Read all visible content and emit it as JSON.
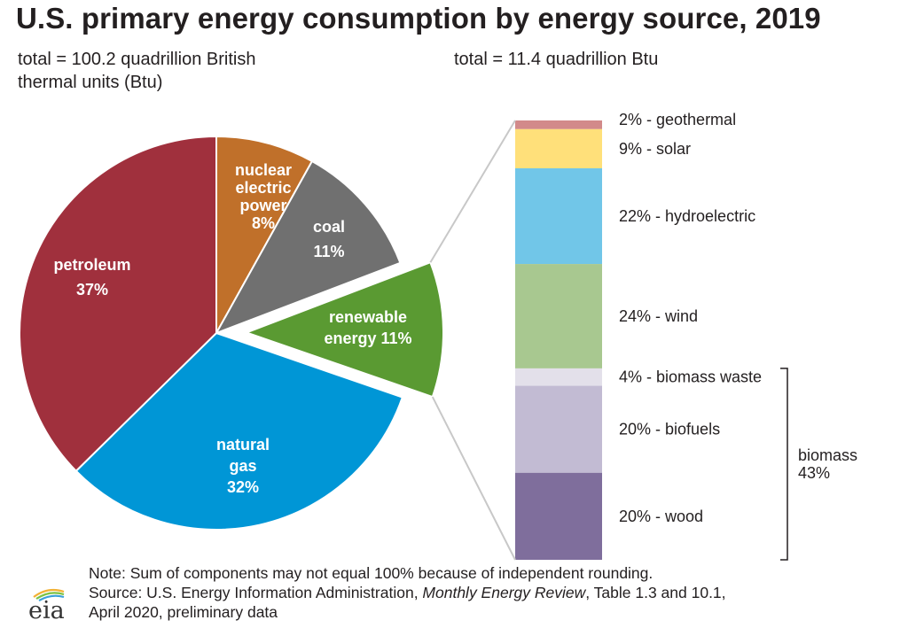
{
  "title": "U.S. primary energy consumption by energy source, 2019",
  "subtitle_left": "total = 100.2 quadrillion British thermal units (Btu)",
  "subtitle_right": "total = 11.4 quadrillion Btu",
  "colors": {
    "petroleum": "#a0303d",
    "nuclear": "#c0702a",
    "coal": "#707070",
    "renewable": "#5a9a32",
    "natural_gas": "#0096d6",
    "geothermal": "#d28a8a",
    "solar": "#ffe07a",
    "hydroelectric": "#71c6e8",
    "wind": "#a8c890",
    "biomass_waste": "#e3e0ea",
    "biofuels": "#c2bbd3",
    "wood": "#7f6e9c"
  },
  "chart_data": [
    {
      "type": "pie",
      "total_label": "total = 100.2 quadrillion British thermal units (Btu)",
      "slices": [
        {
          "key": "nuclear",
          "label": [
            "nuclear",
            "electric",
            "power",
            "8%"
          ],
          "value": 8
        },
        {
          "key": "coal",
          "label": [
            "coal",
            "11%"
          ],
          "value": 11
        },
        {
          "key": "renewable",
          "label": [
            "renewable",
            "energy 11%"
          ],
          "value": 11,
          "exploded": true
        },
        {
          "key": "natural_gas",
          "label": [
            "natural",
            "gas",
            "32%"
          ],
          "value": 32
        },
        {
          "key": "petroleum",
          "label": [
            "petroleum",
            "37%"
          ],
          "value": 37
        }
      ]
    },
    {
      "type": "bar",
      "stacked": true,
      "total_label": "total = 11.4 quadrillion Btu",
      "segments": [
        {
          "key": "geothermal",
          "label": "2% - geothermal",
          "value": 2
        },
        {
          "key": "solar",
          "label": "9% - solar",
          "value": 9
        },
        {
          "key": "hydroelectric",
          "label": "22% - hydroelectric",
          "value": 22
        },
        {
          "key": "wind",
          "label": "24% - wind",
          "value": 24
        },
        {
          "key": "biomass_waste",
          "label": "4% - biomass waste",
          "value": 4
        },
        {
          "key": "biofuels",
          "label": "20% - biofuels",
          "value": 20
        },
        {
          "key": "wood",
          "label": "20% - wood",
          "value": 20
        }
      ],
      "group": {
        "label": [
          "biomass",
          "43%"
        ],
        "value": 43,
        "members": [
          "biomass_waste",
          "biofuels",
          "wood"
        ]
      }
    }
  ],
  "note": "Note: Sum of components may not equal 100% because of independent rounding.",
  "source_prefix": "Source: U.S. Energy Information Administration, ",
  "source_title": "Monthly Energy Review",
  "source_suffix": ", Table 1.3 and 10.1,",
  "source_line2": "April 2020, preliminary data",
  "logo_text": "eia"
}
